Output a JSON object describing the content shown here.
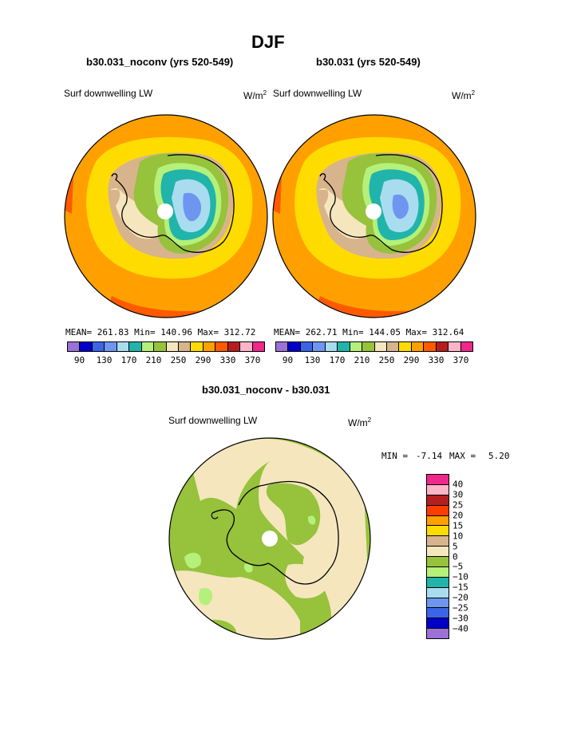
{
  "page": {
    "title": "DJF",
    "diff_title": "b30.031_noconv - b30.031"
  },
  "panels": [
    {
      "subtitle": "b30.031_noconv (yrs 520-549)",
      "field": "Surf downwelling LW",
      "units_base": "W/m",
      "units_exp": "2",
      "stats": "MEAN= 261.83  Min= 140.96  Max= 312.72",
      "colorbar_labels": [
        "90",
        "130",
        "170",
        "210",
        "250",
        "290",
        "330",
        "370"
      ]
    },
    {
      "subtitle": "b30.031 (yrs 520-549)",
      "field": "Surf downwelling LW",
      "units_base": "W/m",
      "units_exp": "2",
      "stats": "MEAN= 262.71  Min= 144.05  Max= 312.64",
      "colorbar_labels": [
        "90",
        "130",
        "170",
        "210",
        "250",
        "290",
        "330",
        "370"
      ]
    }
  ],
  "diff": {
    "field": "Surf downwelling LW",
    "units_base": "W/m",
    "units_exp": "2",
    "min_label": "MIN =",
    "min_value": "-7.14",
    "max_label": "MAX =",
    "max_value": "5.20",
    "colorbar_labels": [
      "40",
      "30",
      "25",
      "20",
      "15",
      "10",
      "5",
      "0",
      "−5",
      "−10",
      "−15",
      "−20",
      "−25",
      "−30",
      "−40"
    ]
  },
  "colors": {
    "abs_scale": [
      "#9b71d8",
      "#0000c8",
      "#3c64e6",
      "#6e96f0",
      "#aadcf0",
      "#20b4aa",
      "#b4f07a",
      "#96c23c",
      "#f5e6be",
      "#d7b48c",
      "#ffdc00",
      "#ffa000",
      "#ff5a00",
      "#b41e1e",
      "#ffb4c8",
      "#f0288c"
    ],
    "diff_scale": [
      "#f0288c",
      "#ffb4c8",
      "#b41e1e",
      "#ff3c00",
      "#ffa000",
      "#ffdc00",
      "#d7b48c",
      "#f5e6be",
      "#96c23c",
      "#b4f07a",
      "#20b4aa",
      "#aadcf0",
      "#6e96f0",
      "#3c64e6",
      "#0000c8",
      "#9b71d8"
    ]
  }
}
